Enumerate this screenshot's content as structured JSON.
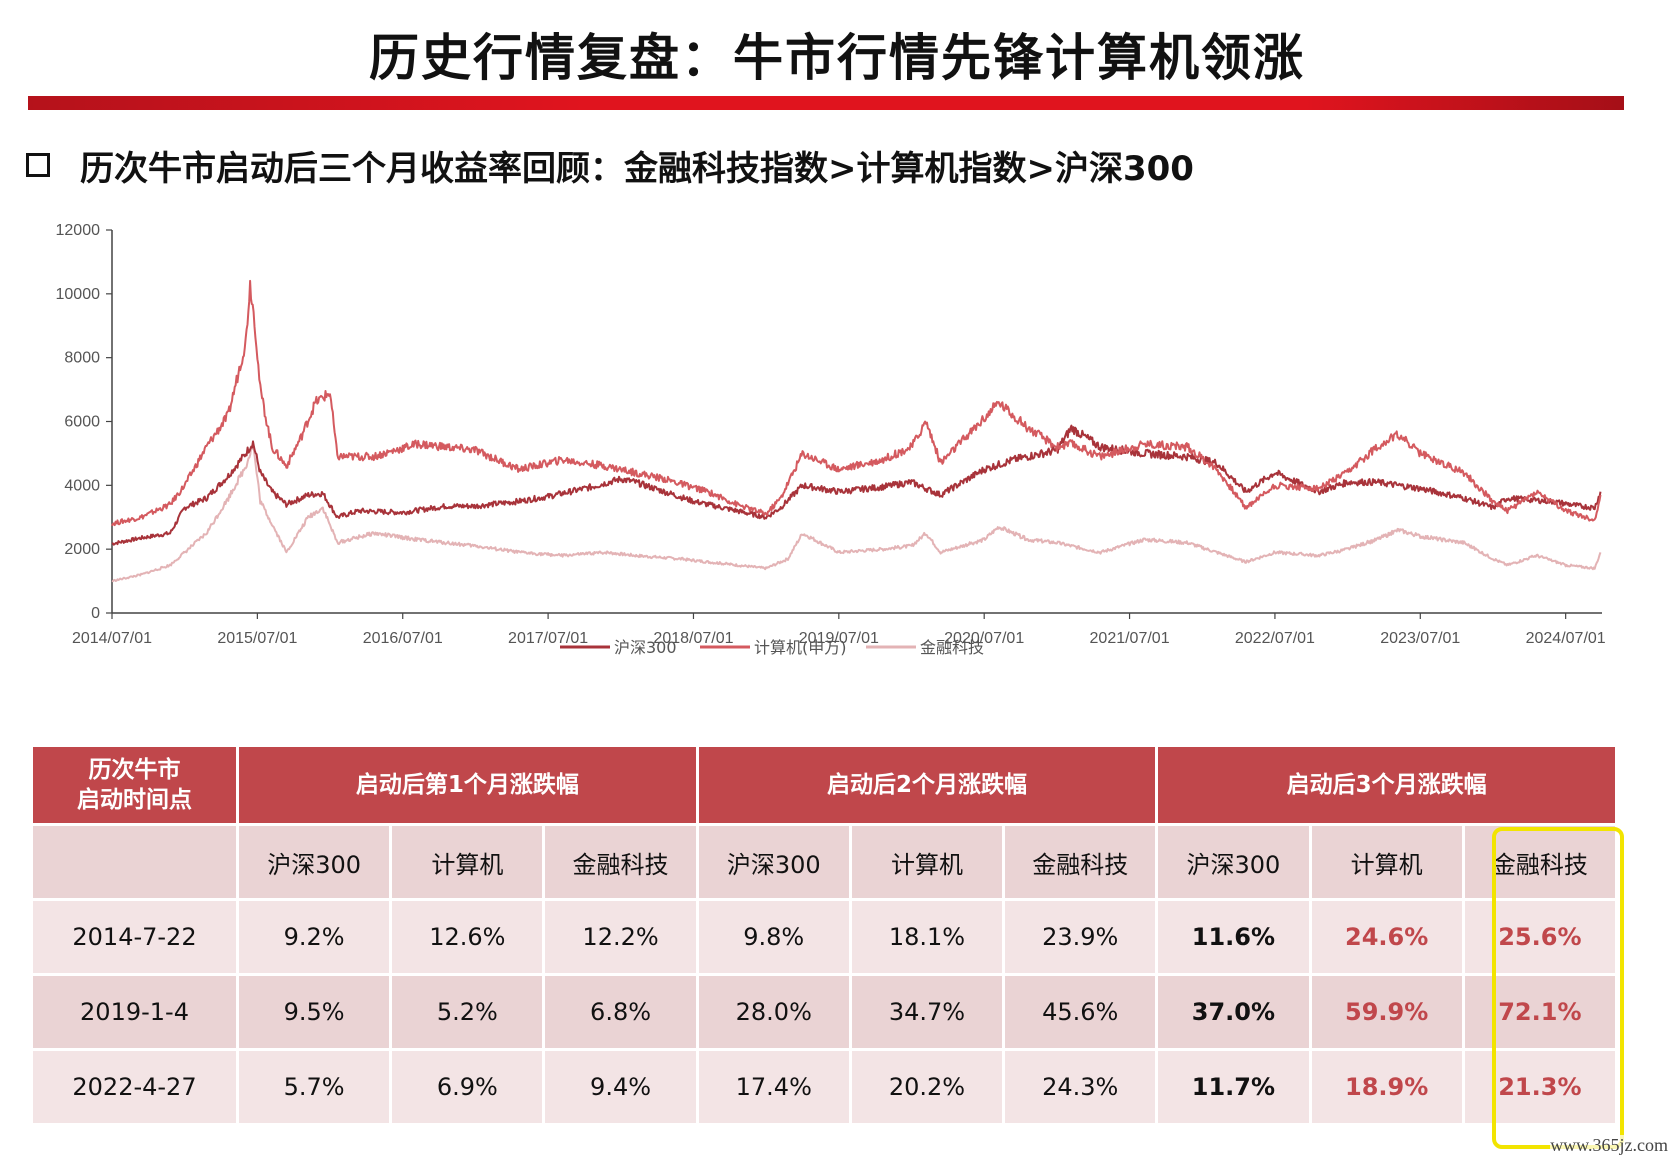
{
  "header": {
    "title": "历史行情复盘：牛市行情先锋计算机领涨",
    "subtitle": "历次牛市启动后三个月收益率回顾：金融科技指数>计算机指数>沪深300"
  },
  "colors": {
    "hs300": "#a8333a",
    "computer": "#d45a5f",
    "fintech": "#e3b3b5",
    "table_header": "#c0474b",
    "highlight": "#f2e400"
  },
  "chart_data": {
    "type": "line",
    "x_ticks": [
      "2014/07/01",
      "2015/07/01",
      "2016/07/01",
      "2017/07/01",
      "2018/07/01",
      "2019/07/01",
      "2020/07/01",
      "2021/07/01",
      "2022/07/01",
      "2023/07/01",
      "2024/07/01"
    ],
    "y_ticks": [
      "0",
      "2000",
      "4000",
      "6000",
      "8000",
      "10000",
      "12000"
    ],
    "ylim": [
      0,
      12000
    ],
    "xlim": [
      2014.5,
      2024.75
    ],
    "legend_position": "bottom-center",
    "series": [
      {
        "name": "沪深300",
        "color": "#a8333a",
        "points": [
          [
            2014.5,
            2170
          ],
          [
            2014.7,
            2350
          ],
          [
            2014.9,
            2500
          ],
          [
            2015.0,
            3300
          ],
          [
            2015.15,
            3600
          ],
          [
            2015.3,
            4300
          ],
          [
            2015.42,
            5000
          ],
          [
            2015.47,
            5350
          ],
          [
            2015.52,
            4400
          ],
          [
            2015.6,
            3800
          ],
          [
            2015.7,
            3400
          ],
          [
            2015.85,
            3700
          ],
          [
            2015.95,
            3750
          ],
          [
            2016.05,
            3000
          ],
          [
            2016.2,
            3200
          ],
          [
            2016.5,
            3150
          ],
          [
            2016.8,
            3350
          ],
          [
            2017.0,
            3350
          ],
          [
            2017.3,
            3500
          ],
          [
            2017.5,
            3650
          ],
          [
            2017.8,
            3950
          ],
          [
            2018.0,
            4200
          ],
          [
            2018.1,
            4100
          ],
          [
            2018.3,
            3800
          ],
          [
            2018.5,
            3500
          ],
          [
            2018.8,
            3200
          ],
          [
            2019.0,
            3000
          ],
          [
            2019.1,
            3300
          ],
          [
            2019.25,
            4000
          ],
          [
            2019.5,
            3800
          ],
          [
            2019.8,
            3950
          ],
          [
            2020.0,
            4100
          ],
          [
            2020.2,
            3700
          ],
          [
            2020.5,
            4500
          ],
          [
            2020.7,
            4800
          ],
          [
            2021.0,
            5100
          ],
          [
            2021.1,
            5800
          ],
          [
            2021.3,
            5200
          ],
          [
            2021.6,
            5000
          ],
          [
            2021.9,
            4900
          ],
          [
            2022.1,
            4700
          ],
          [
            2022.3,
            3800
          ],
          [
            2022.5,
            4400
          ],
          [
            2022.8,
            3800
          ],
          [
            2023.0,
            4100
          ],
          [
            2023.2,
            4100
          ],
          [
            2023.5,
            3900
          ],
          [
            2023.8,
            3600
          ],
          [
            2024.0,
            3300
          ],
          [
            2024.1,
            3600
          ],
          [
            2024.4,
            3500
          ],
          [
            2024.6,
            3350
          ],
          [
            2024.7,
            3300
          ],
          [
            2024.74,
            3800
          ]
        ]
      },
      {
        "name": "计算机(申万)",
        "color": "#d45a5f",
        "points": [
          [
            2014.5,
            2800
          ],
          [
            2014.7,
            3000
          ],
          [
            2014.9,
            3400
          ],
          [
            2015.0,
            4000
          ],
          [
            2015.15,
            5200
          ],
          [
            2015.3,
            6200
          ],
          [
            2015.42,
            8500
          ],
          [
            2015.45,
            10300
          ],
          [
            2015.48,
            9200
          ],
          [
            2015.52,
            7000
          ],
          [
            2015.6,
            5200
          ],
          [
            2015.7,
            4600
          ],
          [
            2015.8,
            5500
          ],
          [
            2015.9,
            6600
          ],
          [
            2016.0,
            6900
          ],
          [
            2016.05,
            4900
          ],
          [
            2016.3,
            4900
          ],
          [
            2016.6,
            5300
          ],
          [
            2017.0,
            5100
          ],
          [
            2017.3,
            4500
          ],
          [
            2017.6,
            4800
          ],
          [
            2017.9,
            4600
          ],
          [
            2018.1,
            4400
          ],
          [
            2018.3,
            4200
          ],
          [
            2018.6,
            3800
          ],
          [
            2018.8,
            3400
          ],
          [
            2019.0,
            3100
          ],
          [
            2019.1,
            3600
          ],
          [
            2019.25,
            5000
          ],
          [
            2019.5,
            4500
          ],
          [
            2019.8,
            4800
          ],
          [
            2020.0,
            5200
          ],
          [
            2020.1,
            6000
          ],
          [
            2020.2,
            4700
          ],
          [
            2020.5,
            6100
          ],
          [
            2020.6,
            6600
          ],
          [
            2020.8,
            5800
          ],
          [
            2021.0,
            5200
          ],
          [
            2021.1,
            5300
          ],
          [
            2021.3,
            4900
          ],
          [
            2021.6,
            5300
          ],
          [
            2021.9,
            5200
          ],
          [
            2022.1,
            4500
          ],
          [
            2022.3,
            3300
          ],
          [
            2022.5,
            4000
          ],
          [
            2022.8,
            3900
          ],
          [
            2023.0,
            4400
          ],
          [
            2023.2,
            5200
          ],
          [
            2023.35,
            5600
          ],
          [
            2023.5,
            5000
          ],
          [
            2023.8,
            4400
          ],
          [
            2024.0,
            3500
          ],
          [
            2024.1,
            3200
          ],
          [
            2024.3,
            3800
          ],
          [
            2024.5,
            3200
          ],
          [
            2024.7,
            2900
          ],
          [
            2024.74,
            3700
          ]
        ]
      },
      {
        "name": "金融科技",
        "color": "#e3b3b5",
        "points": [
          [
            2014.5,
            1000
          ],
          [
            2014.7,
            1200
          ],
          [
            2014.9,
            1500
          ],
          [
            2015.0,
            1900
          ],
          [
            2015.15,
            2500
          ],
          [
            2015.3,
            3600
          ],
          [
            2015.42,
            4600
          ],
          [
            2015.47,
            5300
          ],
          [
            2015.52,
            3500
          ],
          [
            2015.6,
            2800
          ],
          [
            2015.7,
            1900
          ],
          [
            2015.85,
            3000
          ],
          [
            2015.95,
            3300
          ],
          [
            2016.05,
            2200
          ],
          [
            2016.3,
            2500
          ],
          [
            2016.6,
            2300
          ],
          [
            2017.0,
            2100
          ],
          [
            2017.3,
            1900
          ],
          [
            2017.6,
            1800
          ],
          [
            2017.9,
            1900
          ],
          [
            2018.1,
            1800
          ],
          [
            2018.4,
            1700
          ],
          [
            2018.7,
            1550
          ],
          [
            2019.0,
            1400
          ],
          [
            2019.15,
            1700
          ],
          [
            2019.25,
            2500
          ],
          [
            2019.5,
            1900
          ],
          [
            2019.8,
            2000
          ],
          [
            2020.0,
            2100
          ],
          [
            2020.1,
            2500
          ],
          [
            2020.2,
            1900
          ],
          [
            2020.5,
            2300
          ],
          [
            2020.6,
            2700
          ],
          [
            2020.8,
            2300
          ],
          [
            2021.0,
            2200
          ],
          [
            2021.3,
            1900
          ],
          [
            2021.6,
            2300
          ],
          [
            2021.9,
            2200
          ],
          [
            2022.1,
            1900
          ],
          [
            2022.3,
            1600
          ],
          [
            2022.5,
            1900
          ],
          [
            2022.8,
            1800
          ],
          [
            2023.0,
            2000
          ],
          [
            2023.2,
            2300
          ],
          [
            2023.35,
            2600
          ],
          [
            2023.5,
            2400
          ],
          [
            2023.8,
            2200
          ],
          [
            2024.0,
            1700
          ],
          [
            2024.1,
            1500
          ],
          [
            2024.3,
            1800
          ],
          [
            2024.5,
            1500
          ],
          [
            2024.7,
            1400
          ],
          [
            2024.74,
            1900
          ]
        ]
      }
    ]
  },
  "table": {
    "corner_label_line1": "历次牛市",
    "corner_label_line2": "启动时间点",
    "groups": [
      "启动后第1个月涨跌幅",
      "启动后2个月涨跌幅",
      "启动后3个月涨跌幅"
    ],
    "subheaders": [
      "沪深300",
      "计算机",
      "金融科技",
      "沪深300",
      "计算机",
      "金融科技",
      "沪深300",
      "计算机",
      "金融科技"
    ],
    "rows": [
      {
        "date": "2014-7-22",
        "values": [
          "9.2%",
          "12.6%",
          "12.2%",
          "9.8%",
          "18.1%",
          "23.9%",
          "11.6%",
          "24.6%",
          "25.6%"
        ]
      },
      {
        "date": "2019-1-4",
        "values": [
          "9.5%",
          "5.2%",
          "6.8%",
          "28.0%",
          "34.7%",
          "45.6%",
          "37.0%",
          "59.9%",
          "72.1%"
        ]
      },
      {
        "date": "2022-4-27",
        "values": [
          "5.7%",
          "6.9%",
          "9.4%",
          "17.4%",
          "20.2%",
          "24.3%",
          "11.7%",
          "18.9%",
          "21.3%"
        ]
      }
    ]
  },
  "watermark": "www.365jz.com"
}
